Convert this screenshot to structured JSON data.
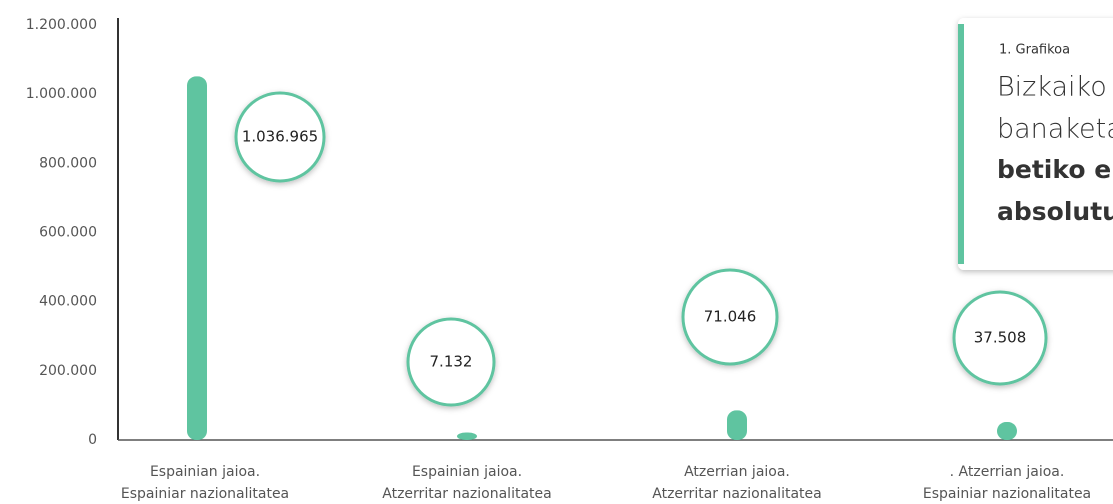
{
  "chart_data": {
    "type": "bar",
    "caption": "1. Grafikoa",
    "title_lines": [
      "Bizkaiko",
      "banaketa"
    ],
    "title_bold_lines": [
      "betiko e",
      "absolutu"
    ],
    "categories": [
      [
        "Espainian jaioa.",
        "Espainiar nazionalitatea"
      ],
      [
        "Espainian jaioa.",
        "Atzerritar nazionalitatea"
      ],
      [
        "Atzerrian jaioa.",
        "Atzerritar nazionalitatea"
      ],
      [
        ". Atzerrian jaioa.",
        "Espainiar nazionalitatea"
      ]
    ],
    "values": [
      1036965,
      7132,
      71046,
      37508
    ],
    "value_labels": [
      "1.036.965",
      "7.132",
      "71.046",
      "37.508"
    ],
    "color": "#5fc4a0",
    "ylim": [
      0,
      1200000
    ],
    "yticks": [
      0,
      {
        "value": 200000,
        "label": "200.000"
      },
      {
        "value": 400000,
        "label": "400.000"
      },
      {
        "value": 600000,
        "label": "600.000"
      },
      {
        "value": 800000,
        "label": "800.000"
      },
      {
        "value": 1000000,
        "label": "1.000.000"
      },
      {
        "value": 1200000,
        "label": "1.200.000"
      }
    ]
  }
}
